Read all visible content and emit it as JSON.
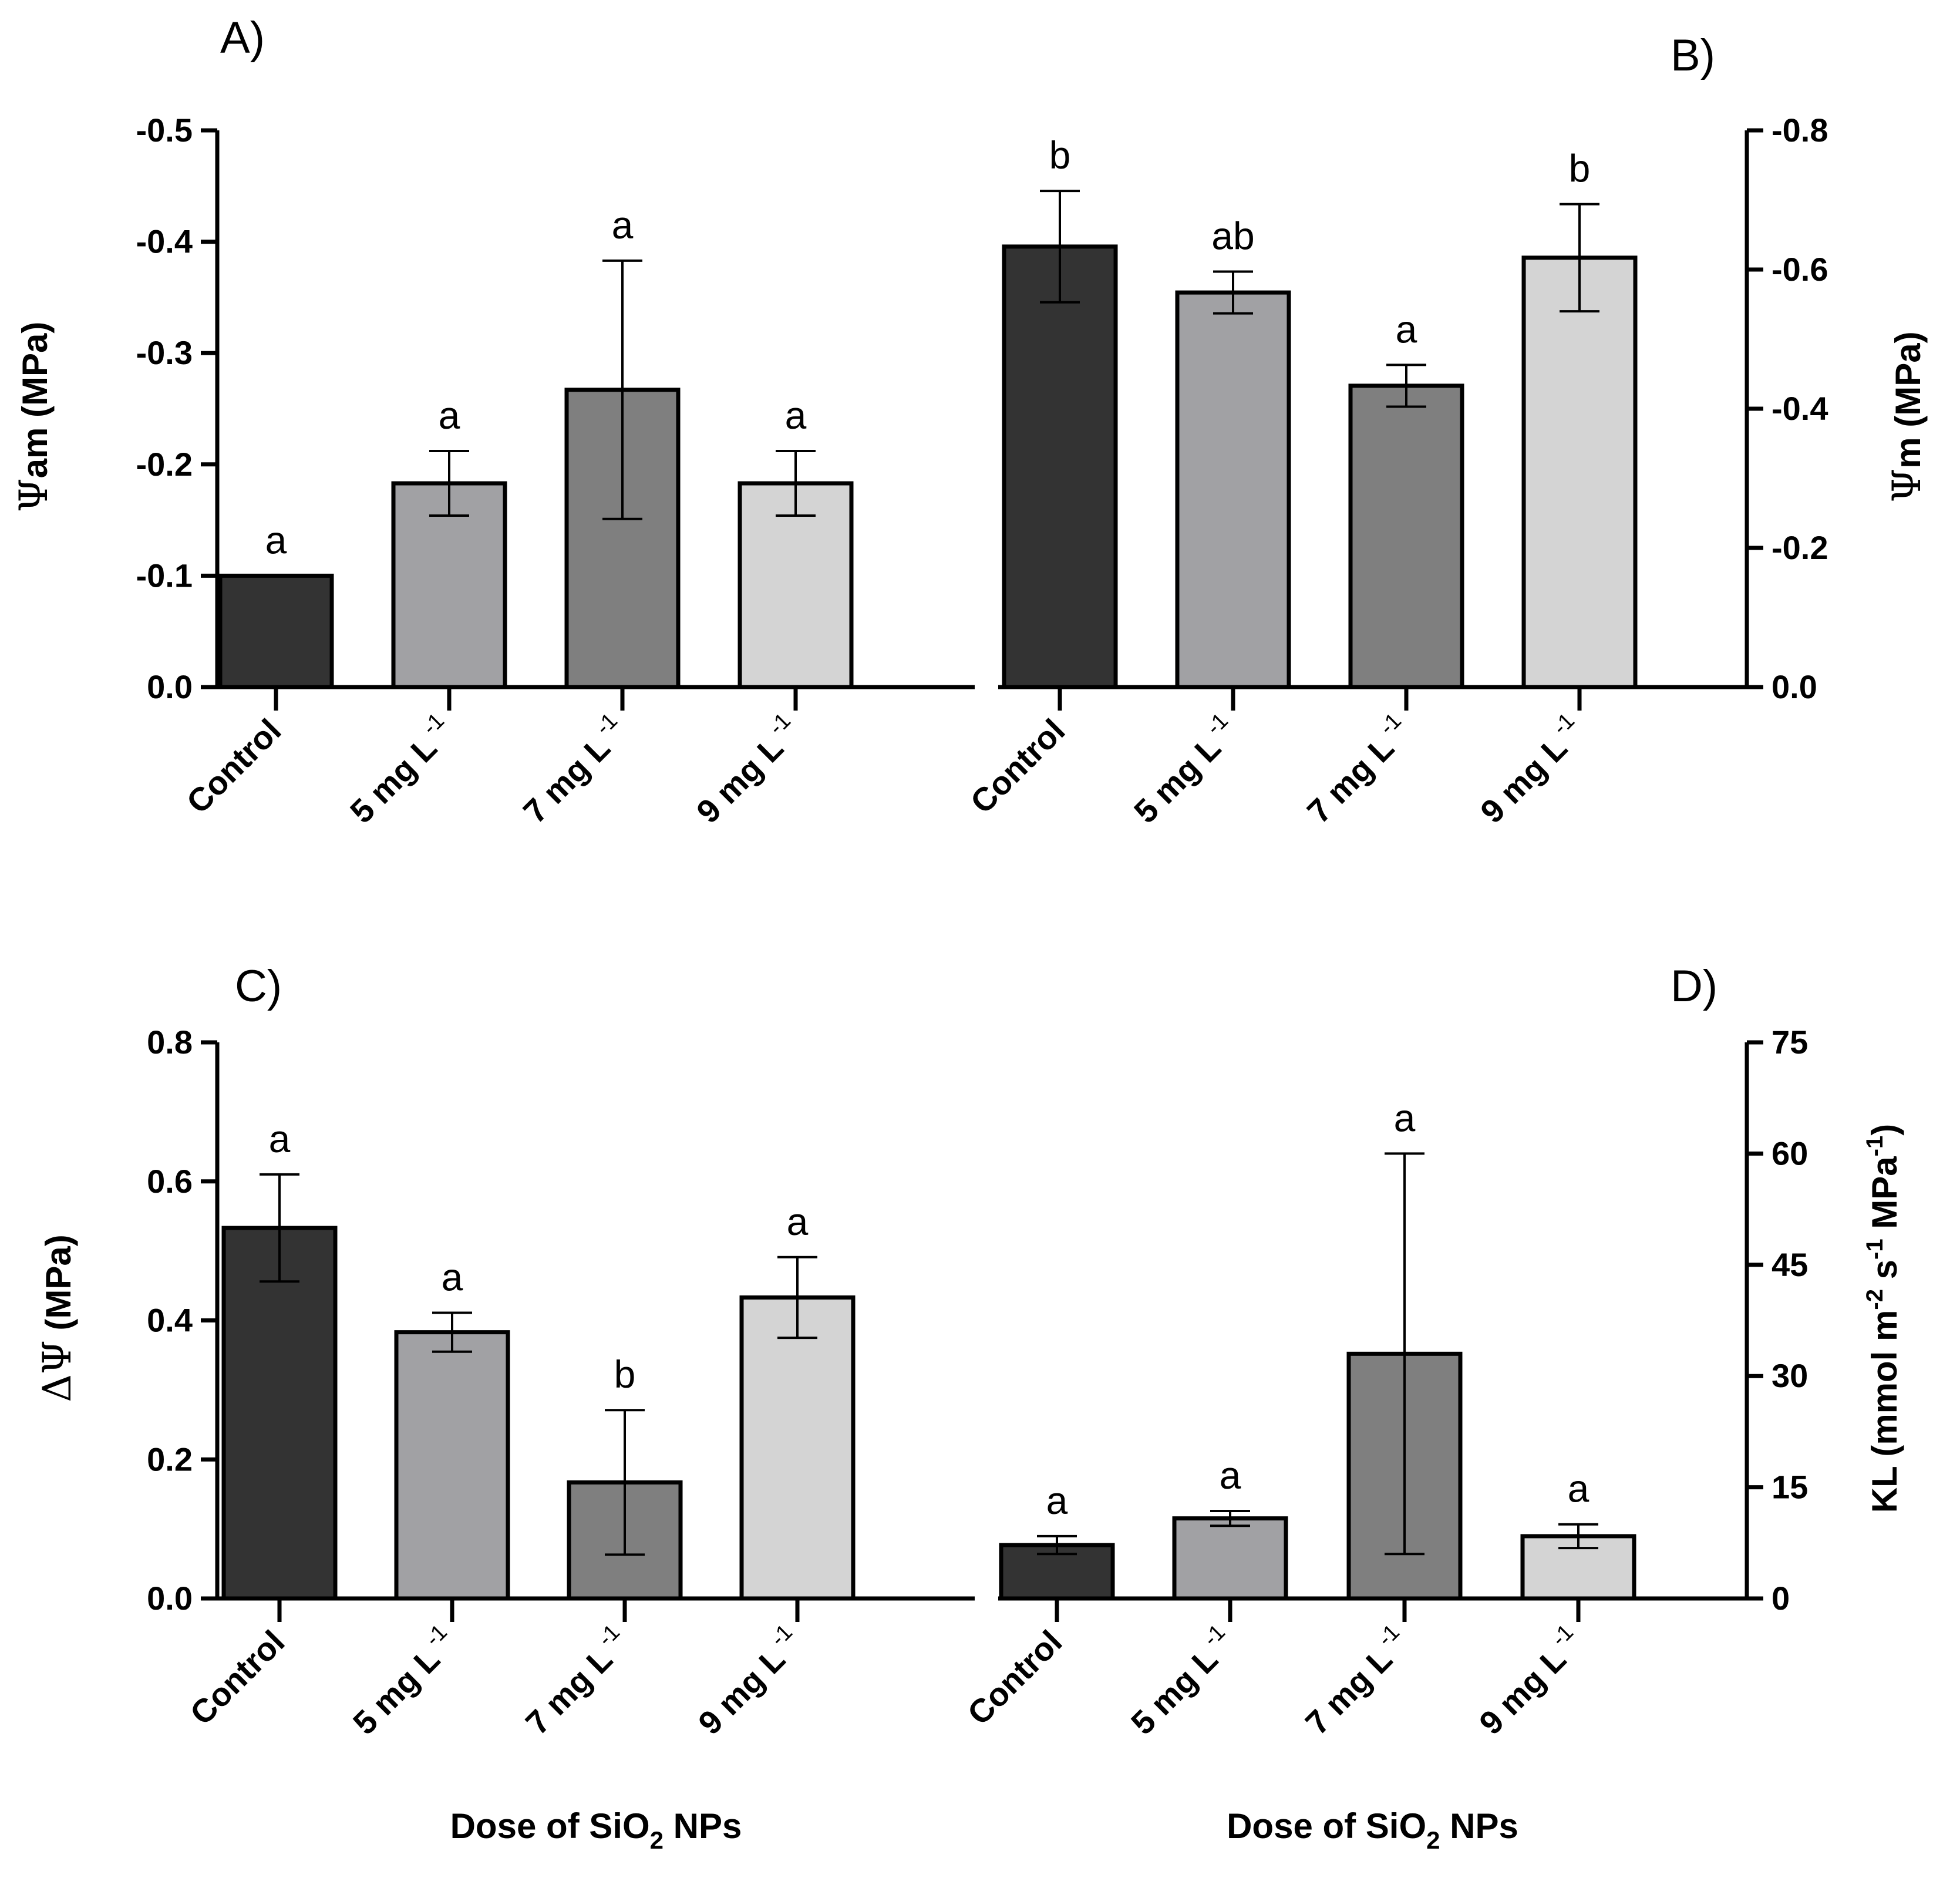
{
  "colors": {
    "Control": "#333333",
    "5 mg L-1": "#a1a1a4",
    "7 mg L-1": "#7f7f7f",
    "9 mg L-1": "#d4d4d4",
    "axis": "#000000"
  },
  "chart_data": [
    {
      "panel": "A)",
      "type": "bar",
      "categories": [
        "Control",
        "5 mg L",
        "7 mg L",
        "9 mg L"
      ],
      "category_superscript": [
        "",
        "-1",
        "-1",
        "-1"
      ],
      "ylabel_symbol": "Ψ",
      "ylabel_text": "am (MPa)",
      "xlabel": "",
      "yaxis_side": "left",
      "ylim": [
        0,
        -0.5
      ],
      "yticks": [
        0,
        -0.1,
        -0.2,
        -0.3,
        -0.4,
        -0.5
      ],
      "ytick_labels": [
        "0.0",
        "-0.1",
        "-0.2",
        "-0.3",
        "-0.4",
        "-0.5"
      ],
      "values": [
        -0.1,
        -0.183,
        -0.267,
        -0.183
      ],
      "errors": [
        0,
        0.029,
        0.116,
        0.029
      ],
      "letters": [
        "a",
        "a",
        "a",
        "a"
      ]
    },
    {
      "panel": "B)",
      "type": "bar",
      "categories": [
        "Control",
        "5 mg L",
        "7 mg L",
        "9 mg L"
      ],
      "category_superscript": [
        "",
        "-1",
        "-1",
        "-1"
      ],
      "ylabel_symbol": "Ψ",
      "ylabel_text": "m (MPa)",
      "xlabel": "",
      "yaxis_side": "right",
      "ylim": [
        0,
        -0.8
      ],
      "yticks": [
        0,
        -0.2,
        -0.4,
        -0.6,
        -0.8
      ],
      "ytick_labels": [
        "0.0",
        "-0.2",
        "-0.4",
        "-0.6",
        "-0.8"
      ],
      "values": [
        -0.633,
        -0.567,
        -0.433,
        -0.617
      ],
      "errors": [
        0.08,
        0.03,
        0.03,
        0.077
      ],
      "letters": [
        "b",
        "ab",
        "a",
        "b"
      ]
    },
    {
      "panel": "C)",
      "type": "bar",
      "categories": [
        "Control",
        "5 mg L",
        "7 mg L",
        "9 mg L"
      ],
      "category_superscript": [
        "",
        "-1",
        "-1",
        "-1"
      ],
      "ylabel_symbol": "ΔΨ",
      "ylabel_text": " (MPa)",
      "xlabel": "Dose of SiO",
      "xlabel_sub": "2",
      "xlabel_tail": " NPs",
      "yaxis_side": "left",
      "ylim": [
        0,
        0.8
      ],
      "yticks": [
        0,
        0.2,
        0.4,
        0.6,
        0.8
      ],
      "ytick_labels": [
        "0.0",
        "0.2",
        "0.4",
        "0.6",
        "0.8"
      ],
      "values": [
        0.533,
        0.383,
        0.167,
        0.433
      ],
      "errors": [
        0.077,
        0.028,
        0.104,
        0.058
      ],
      "letters": [
        "a",
        "a",
        "b",
        "a"
      ]
    },
    {
      "panel": "D)",
      "type": "bar",
      "categories": [
        "Control",
        "5 mg L",
        "7 mg L",
        "9 mg L"
      ],
      "category_superscript": [
        "",
        "-1",
        "-1",
        "-1"
      ],
      "ylabel_parts": [
        {
          "t": "KL (mmol m",
          "s": 0
        },
        {
          "t": "-2",
          "s": 1
        },
        {
          "t": " s",
          "s": 0
        },
        {
          "t": "-1",
          "s": 1
        },
        {
          "t": " MPa",
          "s": 0
        },
        {
          "t": "-1",
          "s": 1
        },
        {
          "t": ")",
          "s": 0
        }
      ],
      "xlabel": "Dose of SiO",
      "xlabel_sub": "2",
      "xlabel_tail": " NPs",
      "yaxis_side": "right",
      "ylim": [
        0,
        75
      ],
      "yticks": [
        0,
        15,
        30,
        45,
        60,
        75
      ],
      "ytick_labels": [
        "0",
        "15",
        "30",
        "45",
        "60",
        "75"
      ],
      "values": [
        7.2,
        10.8,
        33.0,
        8.4
      ],
      "errors": [
        1.2,
        1.0,
        27.0,
        1.6
      ],
      "letters": [
        "a",
        "a",
        "a",
        "a"
      ]
    }
  ]
}
